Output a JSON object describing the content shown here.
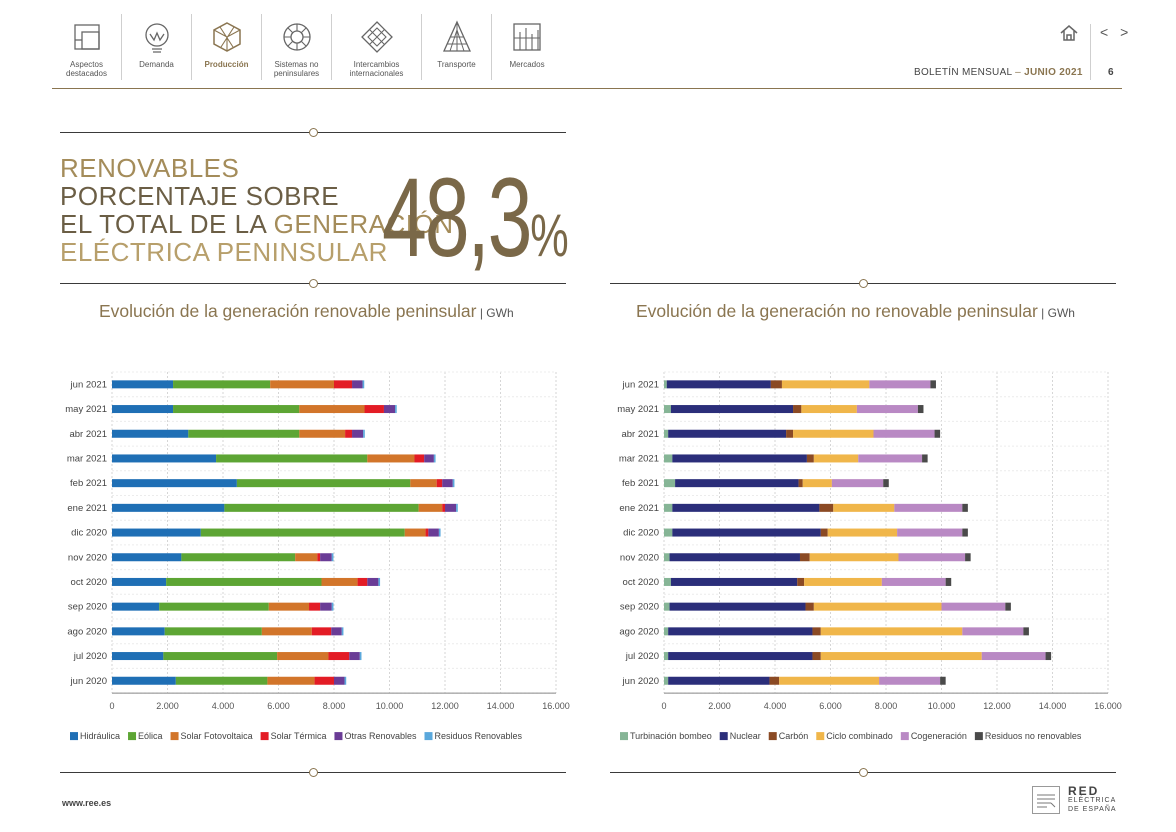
{
  "nav": [
    {
      "label": "Aspectos destacados",
      "icon": "aspects-icon",
      "active": false
    },
    {
      "label": "Demanda",
      "icon": "demand-bulb-icon",
      "active": false
    },
    {
      "label": "Producción",
      "icon": "production-cube-icon",
      "active": true
    },
    {
      "label": "Sistemas no peninsulares",
      "icon": "islands-wheel-icon",
      "active": false
    },
    {
      "label": "Intercambios internacionales",
      "icon": "exchange-diamond-icon",
      "active": false
    },
    {
      "label": "Transporte",
      "icon": "transport-tower-icon",
      "active": false
    },
    {
      "label": "Mercados",
      "icon": "markets-grid-icon",
      "active": false
    }
  ],
  "header": {
    "pager": "< >",
    "bulletin_label": "BOLETÍN MENSUAL",
    "separator": "–",
    "month": "JUNIO 2021",
    "page": "6"
  },
  "highlight": {
    "line1": "RENOVABLES",
    "line2": "PORCENTAJE SOBRE",
    "line3a": "EL TOTAL DE LA ",
    "line3b": "GENERACIÓN",
    "line4": "ELÉCTRICA PENINSULAR",
    "value": "48,3",
    "unit": "%"
  },
  "footer": {
    "url": "www.ree.es",
    "logo_line1": "RED",
    "logo_line2": "ELÉCTRICA",
    "logo_line3": "DE ESPAÑA"
  },
  "chart_data": [
    {
      "type": "bar",
      "orientation": "horizontal",
      "stacked": true,
      "title": "Evolución de la generación renovable peninsular",
      "unit": "GWh",
      "categories": [
        "jun 2021",
        "may 2021",
        "abr 2021",
        "mar 2021",
        "feb 2021",
        "ene 2021",
        "dic 2020",
        "nov 2020",
        "oct 2020",
        "sep 2020",
        "ago 2020",
        "jul 2020",
        "jun 2020"
      ],
      "xlim": [
        0,
        16000
      ],
      "xticks": [
        0,
        2000,
        4000,
        6000,
        8000,
        10000,
        12000,
        14000,
        16000
      ],
      "xtick_labels": [
        "0",
        "2.000",
        "4.000",
        "6.000",
        "8.000",
        "10.000",
        "12.000",
        "14.000",
        "16.000"
      ],
      "grid": true,
      "legend": "bottom",
      "series": [
        {
          "name": "Hidráulica",
          "color": "#1f6fb5",
          "values": [
            2200,
            2200,
            2750,
            3750,
            4500,
            4050,
            3200,
            2500,
            1950,
            1700,
            1900,
            1850,
            2300
          ]
        },
        {
          "name": "Eólica",
          "color": "#5da534",
          "values": [
            3500,
            4550,
            4000,
            5450,
            6250,
            7000,
            7350,
            4100,
            5600,
            3950,
            3500,
            4100,
            3300
          ]
        },
        {
          "name": "Solar Fotovoltaica",
          "color": "#d2752a",
          "values": [
            2300,
            2350,
            1650,
            1700,
            950,
            850,
            750,
            800,
            1300,
            1450,
            1800,
            1850,
            1700
          ]
        },
        {
          "name": "Solar Térmica",
          "color": "#e31c25",
          "values": [
            650,
            700,
            250,
            350,
            200,
            100,
            100,
            100,
            350,
            400,
            700,
            750,
            700
          ]
        },
        {
          "name": "Otras Renovables",
          "color": "#6a3c96",
          "values": [
            380,
            400,
            400,
            350,
            380,
            400,
            380,
            420,
            400,
            420,
            380,
            380,
            380
          ]
        },
        {
          "name": "Residuos Renovables",
          "color": "#5aa8dc",
          "values": [
            60,
            60,
            60,
            60,
            60,
            60,
            60,
            60,
            60,
            60,
            60,
            60,
            60
          ]
        }
      ]
    },
    {
      "type": "bar",
      "orientation": "horizontal",
      "stacked": true,
      "title": "Evolución de la generación no renovable peninsular",
      "unit": "GWh",
      "categories": [
        "jun 2021",
        "may 2021",
        "abr 2021",
        "mar 2021",
        "feb 2021",
        "ene 2021",
        "dic 2020",
        "nov 2020",
        "oct 2020",
        "sep 2020",
        "ago 2020",
        "jul 2020",
        "jun 2020"
      ],
      "xlim": [
        0,
        16000
      ],
      "xticks": [
        0,
        2000,
        4000,
        6000,
        8000,
        10000,
        12000,
        14000,
        16000
      ],
      "xtick_labels": [
        "0",
        "2.000",
        "4.000",
        "6.000",
        "8.000",
        "10.000",
        "12.000",
        "14.000",
        "16.000"
      ],
      "grid": true,
      "legend": "bottom",
      "series": [
        {
          "name": "Turbinación bombeo",
          "color": "#86b596",
          "values": [
            100,
            250,
            150,
            300,
            400,
            300,
            300,
            200,
            250,
            200,
            150,
            150,
            150
          ]
        },
        {
          "name": "Nuclear",
          "color": "#2b2e7a",
          "values": [
            3750,
            4400,
            4250,
            4850,
            4450,
            5300,
            5350,
            4700,
            4550,
            4900,
            5200,
            5200,
            3650
          ]
        },
        {
          "name": "Carbón",
          "color": "#8b4a24",
          "values": [
            400,
            300,
            250,
            250,
            150,
            500,
            250,
            350,
            250,
            300,
            300,
            300,
            350
          ]
        },
        {
          "name": "Ciclo combinado",
          "color": "#f0b64a",
          "values": [
            3150,
            2000,
            2900,
            1600,
            1050,
            2200,
            2500,
            3200,
            2800,
            4600,
            5100,
            5800,
            3600
          ]
        },
        {
          "name": "Cogeneración",
          "color": "#b989c4",
          "values": [
            2200,
            2200,
            2200,
            2300,
            1850,
            2450,
            2350,
            2400,
            2300,
            2300,
            2200,
            2300,
            2200
          ]
        },
        {
          "name": "Residuos no renovables",
          "color": "#4a4a4a",
          "values": [
            200,
            200,
            200,
            200,
            200,
            200,
            200,
            200,
            200,
            200,
            200,
            200,
            200
          ]
        }
      ]
    }
  ]
}
